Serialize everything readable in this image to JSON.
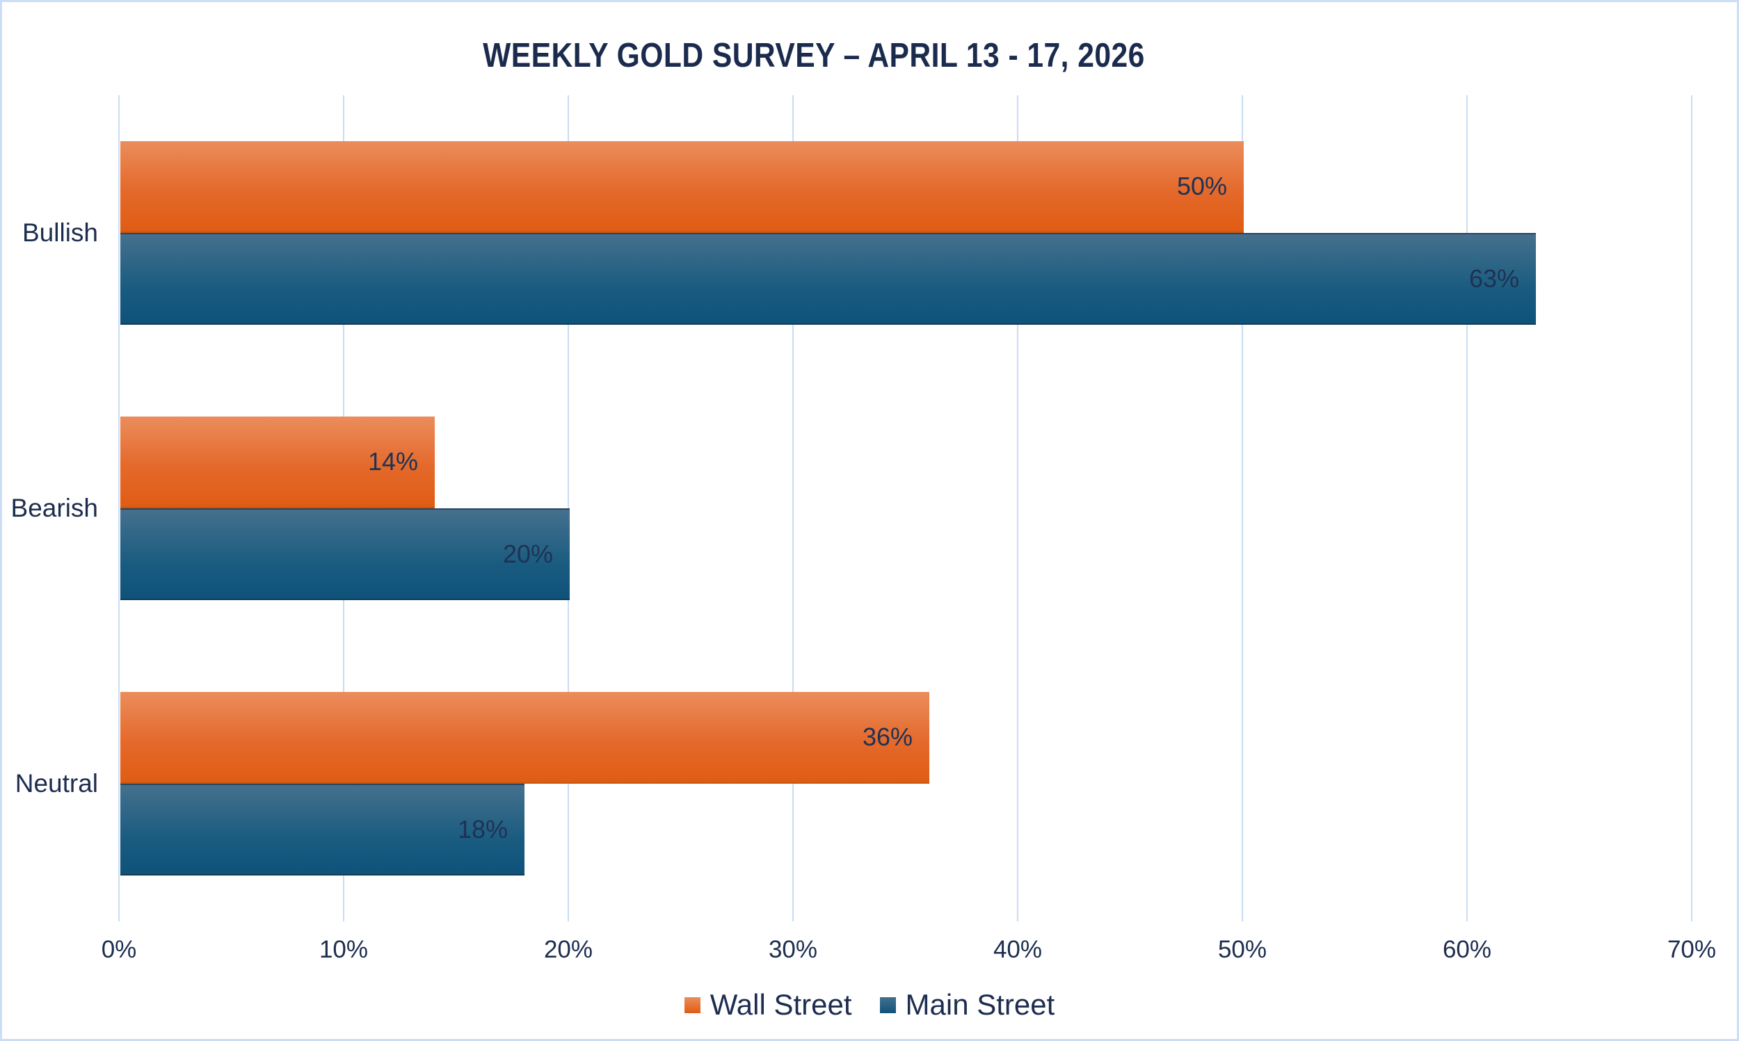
{
  "title": "WEEKLY GOLD SURVEY – APRIL 13 - 17, 2026",
  "chart_data": {
    "type": "bar",
    "orientation": "horizontal",
    "title": "WEEKLY GOLD SURVEY – APRIL 13 - 17, 2026",
    "categories": [
      "Bullish",
      "Bearish",
      "Neutral"
    ],
    "series": [
      {
        "name": "Wall Street",
        "values": [
          50,
          14,
          36
        ],
        "color": "#E05C13",
        "color_light": "#EB8D5C",
        "legend_color": "#E8682A"
      },
      {
        "name": "Main Street",
        "values": [
          63,
          20,
          18
        ],
        "color": "#0F527A",
        "color_light": "#45708D",
        "legend_color": "#1F5A7D"
      }
    ],
    "value_suffix": "%",
    "x_ticks": [
      "0%",
      "10%",
      "20%",
      "30%",
      "40%",
      "50%",
      "60%",
      "70%"
    ],
    "xlim": [
      0,
      70
    ],
    "grid": true,
    "legend_position": "bottom"
  },
  "colors": {
    "background": "#FFFFFF",
    "frame_border": "#CBDEF5",
    "gridline": "#C9DCF4",
    "text": "#1D2D4F",
    "title_text": "#1B2B4D",
    "value_label_text": "#1E3254"
  }
}
